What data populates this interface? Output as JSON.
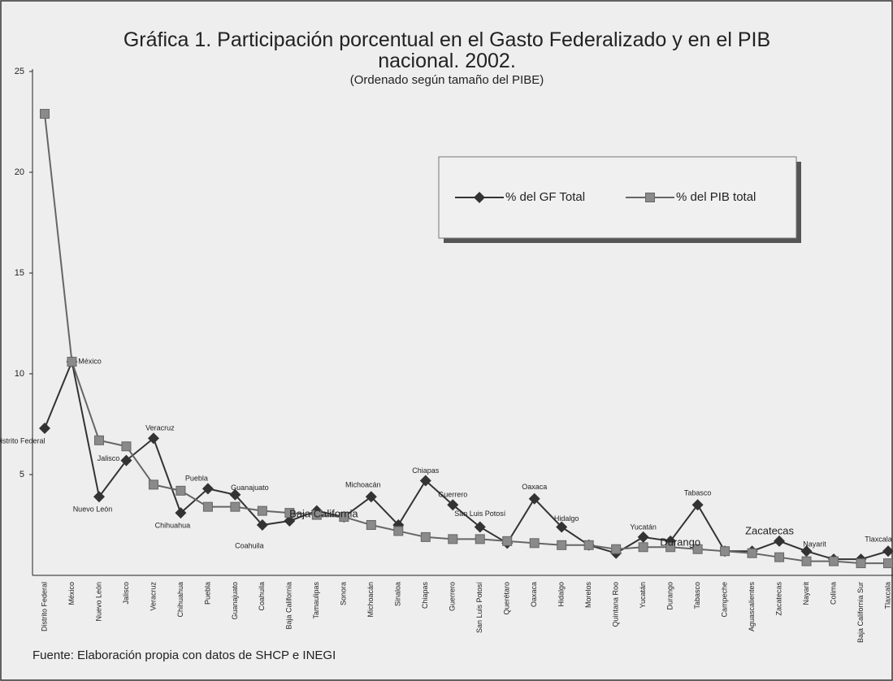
{
  "chart_data": {
    "type": "line",
    "title": "Gráfica 1. Participación porcentual en el Gasto Federalizado y en el PIB nacional. 2002.",
    "subtitle": "(Ordenado según tamaño del PIBE)",
    "note": "Fuente: Elaboración propia con datos de SHCP e INEGI",
    "categories": [
      "Distrito Federal",
      "México",
      "Nuevo León",
      "Jalisco",
      "Veracruz",
      "Chihuahua",
      "Puebla",
      "Guanajuato",
      "Coahuila",
      "Baja California",
      "Tamaulipas",
      "Sonora",
      "Michoacán",
      "Sinaloa",
      "Chiapas",
      "Guerrero",
      "San Luis Potosí",
      "Querétaro",
      "Oaxaca",
      "Hidalgo",
      "Morelos",
      "Quintana Roo",
      "Yucatán",
      "Durango",
      "Tabasco",
      "Campeche",
      "Aguascalientes",
      "Zacatecas",
      "Nayarit",
      "Colima",
      "Baja California Sur",
      "Tlaxcala"
    ],
    "series": [
      {
        "name": "% del GF Total",
        "color": "#333333",
        "marker": "diamond",
        "values": [
          7.3,
          10.6,
          3.9,
          5.7,
          6.8,
          3.1,
          4.3,
          4.0,
          2.5,
          2.7,
          3.2,
          2.9,
          3.9,
          2.5,
          4.7,
          3.5,
          2.4,
          1.6,
          3.8,
          2.4,
          1.5,
          1.1,
          1.9,
          1.7,
          3.5,
          1.2,
          1.2,
          1.7,
          1.2,
          0.8,
          0.8,
          1.2
        ]
      },
      {
        "name": "% del PIB total",
        "color": "#666666",
        "marker": "square",
        "values": [
          22.9,
          10.6,
          6.7,
          6.4,
          4.5,
          4.2,
          3.4,
          3.4,
          3.2,
          3.1,
          3.0,
          2.9,
          2.5,
          2.2,
          1.9,
          1.8,
          1.8,
          1.7,
          1.6,
          1.5,
          1.5,
          1.3,
          1.4,
          1.4,
          1.3,
          1.2,
          1.1,
          0.9,
          0.7,
          0.7,
          0.6,
          0.6
        ]
      }
    ],
    "ylim": [
      0,
      25
    ],
    "yticks": [
      5,
      10,
      15,
      20,
      25
    ],
    "grid": false,
    "legend": "upper right"
  }
}
